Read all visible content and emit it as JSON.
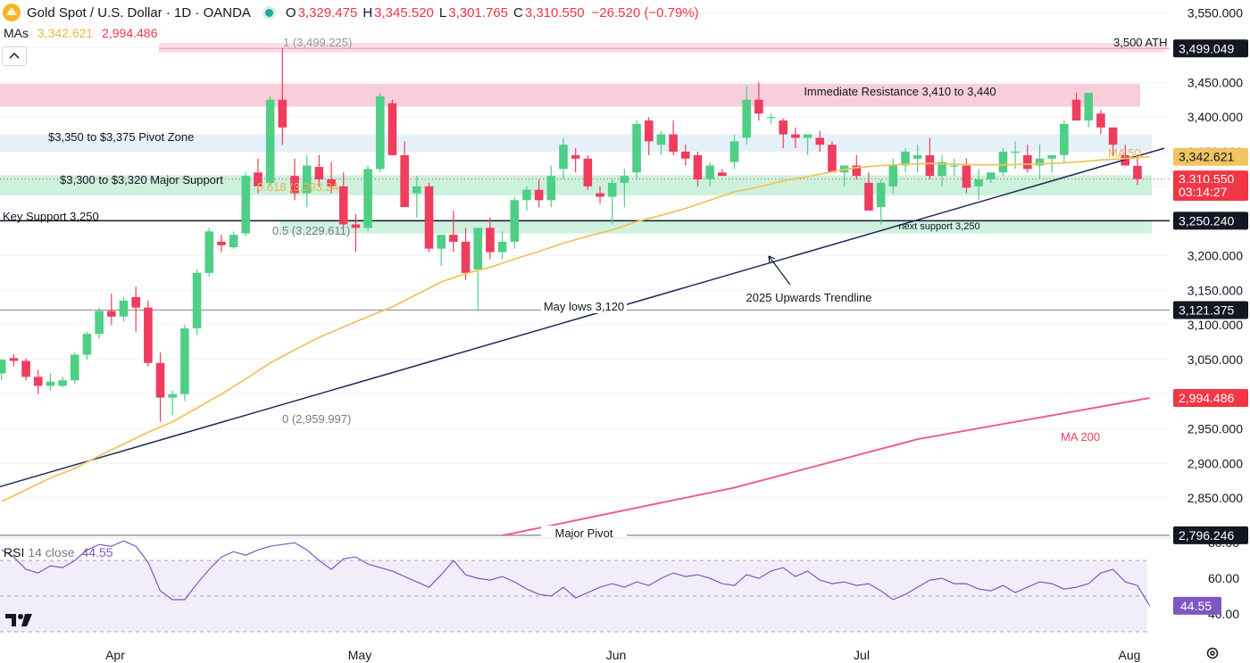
{
  "header": {
    "symbol": "Gold Spot / U.S. Dollar · 1D · OANDA",
    "open_label": "O",
    "open": "3,329.475",
    "high_label": "H",
    "high": "3,345.520",
    "low_label": "L",
    "low": "3,301.765",
    "close_label": "C",
    "close": "3,310.550",
    "change": "−26.520 (−0.79%)"
  },
  "ma_legend": {
    "label": "MAs",
    "ma50_value": "3,342.621",
    "ma200_value": "2,994.486"
  },
  "rsi_legend": {
    "name": "RSI",
    "params": "14 close",
    "value": "44.55"
  },
  "colors": {
    "up": "#4fcf86",
    "down": "#ef3d5d",
    "ma50": "#f0c462",
    "ma200": "#ec5f8e",
    "rsi": "#7e57c2",
    "trendline": "#1c2a5a"
  },
  "chart_data": {
    "type": "candlestick",
    "x_ticks": [
      "Apr",
      "May",
      "Jun",
      "Jul",
      "Aug"
    ],
    "y_ticks": [
      "3,550.000",
      "3,500.000",
      "3,450.000",
      "3,400.000",
      "3,350.000",
      "3,300.000",
      "3,250.000",
      "3,200.000",
      "3,150.000",
      "3,100.000",
      "3,050.000",
      "3,000.000",
      "2,950.000",
      "2,900.000",
      "2,850.000",
      "2,800.000"
    ],
    "y_range": [
      2790,
      3560
    ],
    "candles": [
      [
        3030,
        3050,
        3020,
        3050
      ],
      [
        3052,
        3058,
        3040,
        3048
      ],
      [
        3048,
        3052,
        3020,
        3025
      ],
      [
        3025,
        3035,
        3000,
        3012
      ],
      [
        3012,
        3030,
        3005,
        3018
      ],
      [
        3012,
        3025,
        3010,
        3020
      ],
      [
        3020,
        3060,
        3015,
        3057
      ],
      [
        3057,
        3090,
        3050,
        3087
      ],
      [
        3087,
        3125,
        3080,
        3120
      ],
      [
        3120,
        3145,
        3100,
        3112
      ],
      [
        3112,
        3140,
        3105,
        3135
      ],
      [
        3140,
        3155,
        3090,
        3125
      ],
      [
        3125,
        3135,
        3040,
        3045
      ],
      [
        3045,
        3060,
        2960,
        2995
      ],
      [
        2995,
        3005,
        2970,
        3000
      ],
      [
        3000,
        3100,
        2990,
        3095
      ],
      [
        3095,
        3180,
        3085,
        3175
      ],
      [
        3175,
        3240,
        3170,
        3235
      ],
      [
        3220,
        3230,
        3205,
        3215
      ],
      [
        3212,
        3235,
        3210,
        3230
      ],
      [
        3232,
        3320,
        3228,
        3315
      ],
      [
        3320,
        3340,
        3290,
        3300
      ],
      [
        3305,
        3430,
        3300,
        3425
      ],
      [
        3425,
        3500,
        3360,
        3385
      ],
      [
        3315,
        3340,
        3280,
        3290
      ],
      [
        3290,
        3345,
        3270,
        3330
      ],
      [
        3328,
        3345,
        3300,
        3310
      ],
      [
        3310,
        3335,
        3290,
        3300
      ],
      [
        3300,
        3320,
        3240,
        3245
      ],
      [
        3245,
        3260,
        3205,
        3240
      ],
      [
        3240,
        3330,
        3235,
        3325
      ],
      [
        3325,
        3435,
        3320,
        3430
      ],
      [
        3420,
        3425,
        3350,
        3345
      ],
      [
        3345,
        3365,
        3275,
        3270
      ],
      [
        3290,
        3315,
        3255,
        3300
      ],
      [
        3300,
        3305,
        3205,
        3210
      ],
      [
        3210,
        3225,
        3185,
        3230
      ],
      [
        3230,
        3265,
        3205,
        3220
      ],
      [
        3220,
        3240,
        3165,
        3175
      ],
      [
        3180,
        3240,
        3120,
        3240
      ],
      [
        3240,
        3255,
        3195,
        3205
      ],
      [
        3205,
        3235,
        3195,
        3220
      ],
      [
        3220,
        3285,
        3210,
        3280
      ],
      [
        3280,
        3300,
        3265,
        3295
      ],
      [
        3295,
        3310,
        3270,
        3280
      ],
      [
        3280,
        3330,
        3270,
        3315
      ],
      [
        3325,
        3370,
        3310,
        3360
      ],
      [
        3345,
        3355,
        3320,
        3340
      ],
      [
        3340,
        3345,
        3295,
        3300
      ],
      [
        3290,
        3300,
        3275,
        3285
      ],
      [
        3285,
        3310,
        3245,
        3305
      ],
      [
        3305,
        3325,
        3270,
        3315
      ],
      [
        3320,
        3395,
        3310,
        3390
      ],
      [
        3395,
        3400,
        3345,
        3365
      ],
      [
        3360,
        3380,
        3345,
        3375
      ],
      [
        3375,
        3395,
        3345,
        3350
      ],
      [
        3350,
        3360,
        3330,
        3340
      ],
      [
        3345,
        3350,
        3300,
        3310
      ],
      [
        3310,
        3335,
        3300,
        3330
      ],
      [
        3320,
        3325,
        3315,
        3315
      ],
      [
        3335,
        3375,
        3325,
        3365
      ],
      [
        3370,
        3445,
        3360,
        3425
      ],
      [
        3425,
        3450,
        3395,
        3405
      ],
      [
        3400,
        3405,
        3390,
        3400
      ],
      [
        3395,
        3398,
        3355,
        3375
      ],
      [
        3375,
        3385,
        3355,
        3370
      ],
      [
        3370,
        3375,
        3345,
        3375
      ],
      [
        3370,
        3380,
        3350,
        3360
      ],
      [
        3360,
        3365,
        3320,
        3320
      ],
      [
        3320,
        3330,
        3300,
        3330
      ],
      [
        3330,
        3345,
        3310,
        3315
      ],
      [
        3305,
        3320,
        3265,
        3265
      ],
      [
        3270,
        3310,
        3245,
        3305
      ],
      [
        3300,
        3340,
        3290,
        3330
      ],
      [
        3330,
        3355,
        3320,
        3350
      ],
      [
        3340,
        3360,
        3320,
        3345
      ],
      [
        3345,
        3370,
        3310,
        3315
      ],
      [
        3315,
        3345,
        3300,
        3335
      ],
      [
        3330,
        3340,
        3315,
        3330
      ],
      [
        3330,
        3340,
        3290,
        3298
      ],
      [
        3300,
        3325,
        3280,
        3310
      ],
      [
        3310,
        3320,
        3305,
        3320
      ],
      [
        3320,
        3355,
        3315,
        3350
      ],
      [
        3350,
        3365,
        3325,
        3350
      ],
      [
        3345,
        3360,
        3320,
        3325
      ],
      [
        3330,
        3360,
        3310,
        3340
      ],
      [
        3340,
        3345,
        3320,
        3345
      ],
      [
        3345,
        3395,
        3335,
        3390
      ],
      [
        3425,
        3435,
        3395,
        3395
      ],
      [
        3395,
        3435,
        3385,
        3435
      ],
      [
        3405,
        3410,
        3375,
        3385
      ],
      [
        3385,
        3385,
        3345,
        3360
      ],
      [
        3345,
        3360,
        3330,
        3330
      ],
      [
        3329.475,
        3345.52,
        3301.765,
        3310.55
      ]
    ],
    "ma50": [
      [
        0,
        2845
      ],
      [
        2,
        2862
      ],
      [
        4,
        2879
      ],
      [
        6,
        2893
      ],
      [
        8,
        2911
      ],
      [
        10,
        2928
      ],
      [
        12,
        2945
      ],
      [
        14,
        2960
      ],
      [
        16,
        2980
      ],
      [
        18,
        3000
      ],
      [
        20,
        3022
      ],
      [
        22,
        3045
      ],
      [
        24,
        3064
      ],
      [
        26,
        3082
      ],
      [
        28,
        3097
      ],
      [
        30,
        3112
      ],
      [
        32,
        3126
      ],
      [
        34,
        3144
      ],
      [
        36,
        3162
      ],
      [
        38,
        3174
      ],
      [
        40,
        3183
      ],
      [
        42,
        3195
      ],
      [
        44,
        3206
      ],
      [
        46,
        3218
      ],
      [
        48,
        3228
      ],
      [
        50,
        3237
      ],
      [
        52,
        3249
      ],
      [
        54,
        3258
      ],
      [
        56,
        3268
      ],
      [
        58,
        3280
      ],
      [
        60,
        3292
      ],
      [
        62,
        3299
      ],
      [
        64,
        3308
      ],
      [
        66,
        3314
      ],
      [
        68,
        3321
      ],
      [
        70,
        3327
      ],
      [
        72,
        3330
      ],
      [
        74,
        3332
      ],
      [
        76,
        3333
      ],
      [
        78,
        3332
      ],
      [
        80,
        3331
      ],
      [
        82,
        3331
      ],
      [
        84,
        3332
      ],
      [
        86,
        3333
      ],
      [
        88,
        3335
      ],
      [
        90,
        3338
      ],
      [
        92,
        3340
      ],
      [
        94,
        3342.621
      ]
    ],
    "ma200": [
      [
        41,
        2796
      ],
      [
        60,
        2865
      ],
      [
        75,
        2935
      ],
      [
        94,
        2994.486
      ]
    ],
    "rsi": [
      [
        0,
        76
      ],
      [
        1,
        72
      ],
      [
        2,
        65
      ],
      [
        3,
        63
      ],
      [
        4,
        67
      ],
      [
        5,
        66
      ],
      [
        6,
        70
      ],
      [
        7,
        76
      ],
      [
        8,
        79
      ],
      [
        9,
        78
      ],
      [
        10,
        81
      ],
      [
        11,
        78
      ],
      [
        12,
        69
      ],
      [
        13,
        53
      ],
      [
        14,
        48
      ],
      [
        15,
        48
      ],
      [
        16,
        57
      ],
      [
        17,
        65
      ],
      [
        18,
        72
      ],
      [
        19,
        75
      ],
      [
        20,
        73
      ],
      [
        21,
        76
      ],
      [
        22,
        78
      ],
      [
        23,
        79
      ],
      [
        24,
        80
      ],
      [
        25,
        76
      ],
      [
        26,
        70
      ],
      [
        27,
        65
      ],
      [
        28,
        71
      ],
      [
        29,
        72
      ],
      [
        30,
        68
      ],
      [
        31,
        66
      ],
      [
        32,
        64
      ],
      [
        33,
        61
      ],
      [
        34,
        58
      ],
      [
        35,
        55
      ],
      [
        36,
        62
      ],
      [
        37,
        70
      ],
      [
        38,
        62
      ],
      [
        39,
        60
      ],
      [
        40,
        59
      ],
      [
        41,
        61
      ],
      [
        42,
        58
      ],
      [
        43,
        54
      ],
      [
        44,
        51
      ],
      [
        45,
        50
      ],
      [
        46,
        55
      ],
      [
        47,
        49
      ],
      [
        48,
        52
      ],
      [
        49,
        55
      ],
      [
        50,
        57
      ],
      [
        51,
        55
      ],
      [
        52,
        58
      ],
      [
        53,
        56
      ],
      [
        54,
        60
      ],
      [
        55,
        63
      ],
      [
        56,
        61
      ],
      [
        57,
        62
      ],
      [
        58,
        60
      ],
      [
        59,
        57
      ],
      [
        60,
        56
      ],
      [
        61,
        62
      ],
      [
        62,
        60
      ],
      [
        63,
        64
      ],
      [
        64,
        66
      ],
      [
        65,
        61
      ],
      [
        66,
        64
      ],
      [
        67,
        59
      ],
      [
        68,
        57
      ],
      [
        69,
        58
      ],
      [
        70,
        56
      ],
      [
        71,
        57
      ],
      [
        72,
        53
      ],
      [
        73,
        48
      ],
      [
        74,
        51
      ],
      [
        75,
        55
      ],
      [
        76,
        59
      ],
      [
        77,
        60
      ],
      [
        78,
        57
      ],
      [
        79,
        57
      ],
      [
        80,
        54
      ],
      [
        81,
        53
      ],
      [
        82,
        56
      ],
      [
        83,
        52
      ],
      [
        84,
        55
      ],
      [
        85,
        58
      ],
      [
        86,
        57
      ],
      [
        87,
        54
      ],
      [
        88,
        55
      ],
      [
        89,
        57
      ],
      [
        90,
        63
      ],
      [
        91,
        65
      ],
      [
        92,
        58
      ],
      [
        93,
        56
      ],
      [
        94,
        44.55
      ]
    ],
    "rsi_ticks": [
      "80.00",
      "60.00",
      "40.00"
    ],
    "rsi_range": [
      36,
      82
    ],
    "trendline": {
      "x": [
        -1,
        95.2
      ],
      "y": [
        2862,
        3355
      ]
    },
    "price_tags": [
      {
        "label": "3,499.049",
        "y": 3499.049,
        "kind": "dark"
      },
      {
        "label": "3,342.621",
        "y": 3342.621,
        "kind": "ma50"
      },
      {
        "label": "3,310.550",
        "y": 3310.55,
        "kind": "last"
      },
      {
        "label": "03:14:27",
        "y": 3292,
        "kind": "countdown"
      },
      {
        "label": "3,250.240",
        "y": 3250.24,
        "kind": "dark"
      },
      {
        "label": "3,121.375",
        "y": 3121.375,
        "kind": "dark"
      },
      {
        "label": "2,994.486",
        "y": 2994.486,
        "kind": "ma200"
      },
      {
        "label": "2,796.246",
        "y": 2796.246,
        "kind": "dark"
      }
    ],
    "rsi_tag": {
      "label": "44.55",
      "y": 44.55
    },
    "annotations": [
      {
        "text": "Immediate Resistance 3,410 to 3,440"
      },
      {
        "text": "$3,350 to $3,375 Pivot Zone"
      },
      {
        "text": "$3,300 to $3,320 Major Support"
      },
      {
        "text": "Key Support 3,250"
      },
      {
        "text": "next support 3,250"
      },
      {
        "text": "2025 Upwards Trendline"
      },
      {
        "text": "May lows 3,120"
      },
      {
        "text": "Major Pivot"
      },
      {
        "text": "3,500 ATH"
      },
      {
        "text": "MA 50"
      },
      {
        "text": "MA 200"
      }
    ],
    "fib_levels": [
      {
        "text": "1 (3,499.225)"
      },
      {
        "text": "0.618 (3,293.24"
      },
      {
        "text": "0.5 (3,229.611)"
      },
      {
        "text": "0 (2,959.997)"
      }
    ]
  }
}
